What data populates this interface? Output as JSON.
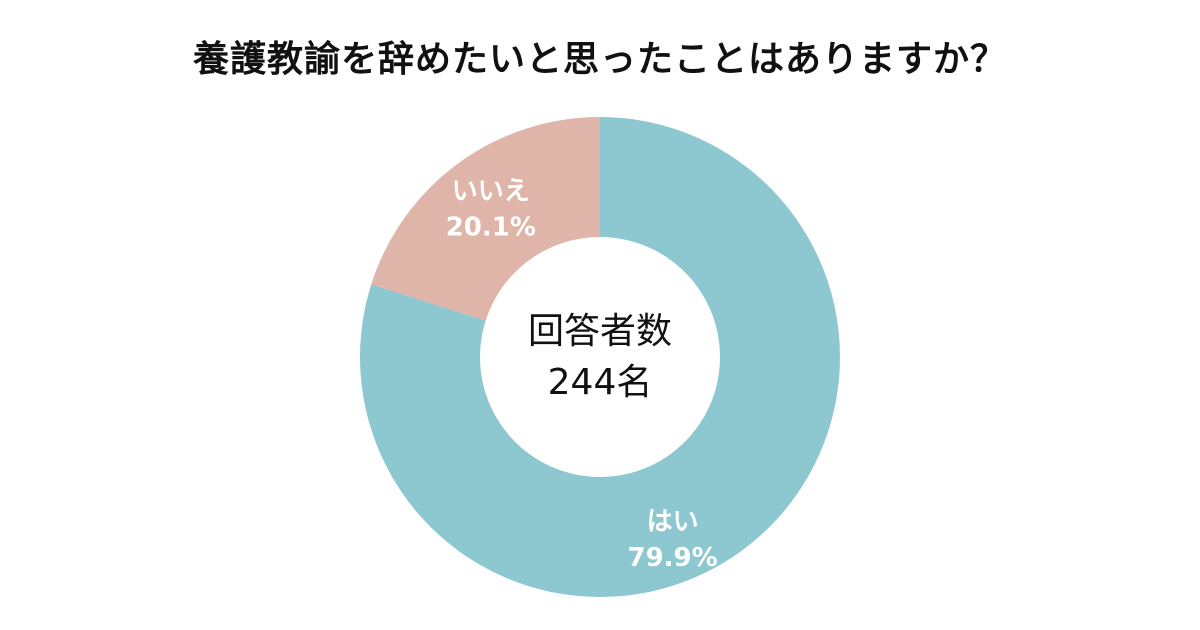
{
  "chart_data": {
    "type": "pie",
    "title": "養護教諭を辞めたいと思ったことはありますか？",
    "categories": [
      "はい",
      "いいえ"
    ],
    "values": [
      79.9,
      20.1
    ],
    "percent_labels": [
      "79.9%",
      "20.1%"
    ],
    "colors": [
      "#8DC7CF",
      "#DFB5AA"
    ],
    "center_text": {
      "line1": "回答者数",
      "line2": "244名"
    }
  }
}
